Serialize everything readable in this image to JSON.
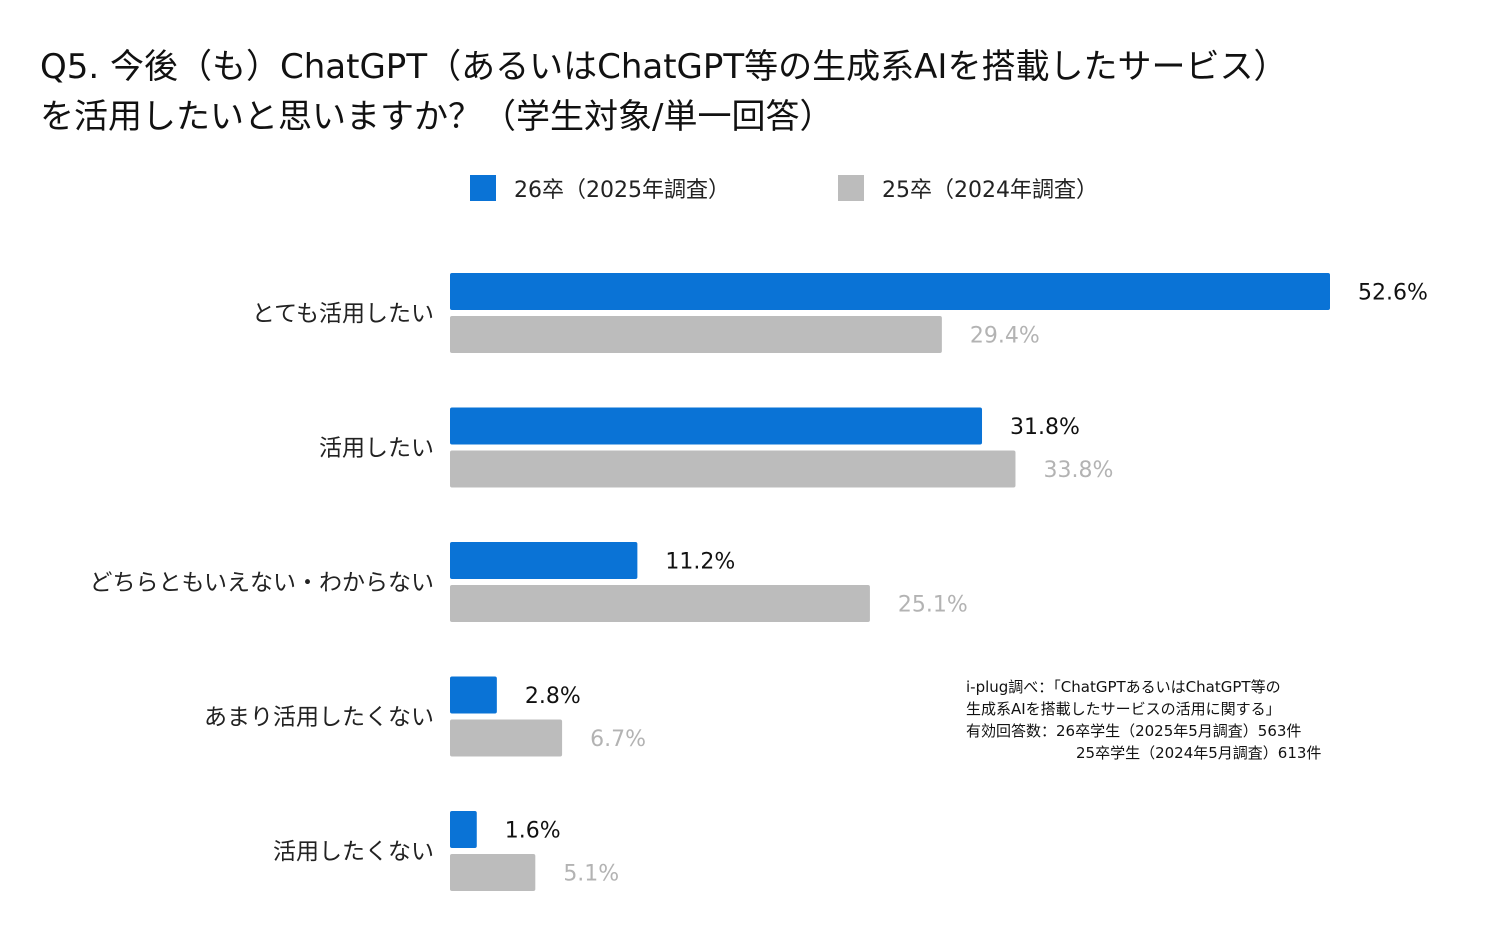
{
  "title_line1": "Q5. 今後（も）ChatGPT（あるいはChatGPT等の生成系AIを搭載したサービス）",
  "title_line2": "を活用したいと思いますか？（学生対象/単一回答）",
  "note": {
    "line1": "i-plug調べ：「ChatGPTあるいはChatGPT等の",
    "line2": "生成系AIを搭載したサービスの活用に関する」",
    "line3": "有効回答数：26卒学生（2025年5月調査）563件",
    "line4": "25卒学生（2024年5月調査）613件"
  },
  "chart_data": {
    "type": "bar",
    "orientation": "horizontal",
    "categories": [
      "とても活用したい",
      "活用したい",
      "どちらともいえない・わからない",
      "あまり活用したくない",
      "活用したくない"
    ],
    "series": [
      {
        "name": "26卒（2025年調査）",
        "values": [
          52.6,
          31.8,
          11.2,
          2.8,
          1.6
        ],
        "labels": [
          "52.6%",
          "31.8%",
          "11.2%",
          "2.8%",
          "1.6%"
        ],
        "color": "#0a73d6",
        "label_color": "#111111"
      },
      {
        "name": "25卒（2024年調査）",
        "values": [
          29.4,
          33.8,
          25.1,
          6.7,
          5.1
        ],
        "labels": [
          "29.4%",
          "33.8%",
          "25.1%",
          "6.7%",
          "5.1%"
        ],
        "color": "#bcbcbc",
        "label_color": "#b3b3b3"
      }
    ],
    "unit": "%",
    "legend_position": "top",
    "grid": false
  }
}
